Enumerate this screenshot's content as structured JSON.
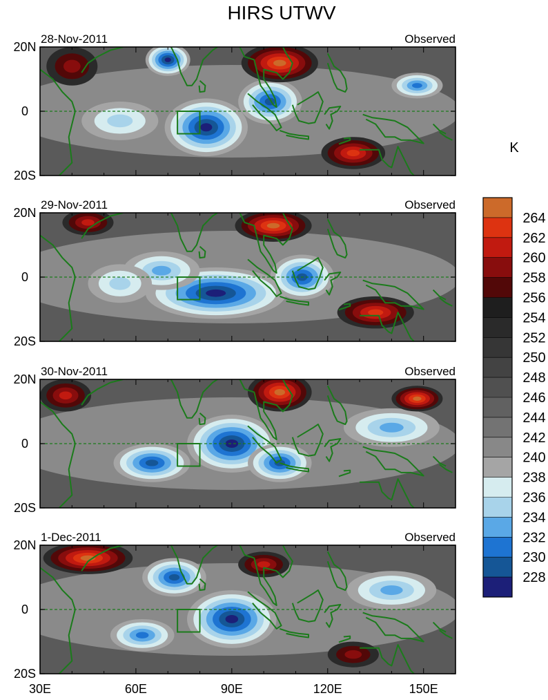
{
  "chart_data": [
    {
      "type": "heatmap",
      "title": "HIRS UTWV",
      "date": "28-Nov-2011",
      "label_right": "Observed",
      "x_ticks": [
        "30E",
        "60E",
        "90E",
        "120E",
        "150E"
      ],
      "x_values": [
        30,
        60,
        90,
        120,
        150
      ],
      "xlim": [
        30,
        160
      ],
      "y_ticks": [
        "20N",
        "0",
        "20S"
      ],
      "y_values": [
        20,
        0,
        -20
      ],
      "ylim": [
        -20,
        20
      ],
      "box": {
        "lon": [
          73,
          80
        ],
        "lat": [
          -7,
          0
        ]
      },
      "equator_line": true,
      "features": [
        {
          "kind": "moist",
          "lon": 70,
          "lat": 16,
          "rx": 7,
          "ry": 5,
          "level": 1.0
        },
        {
          "kind": "moist",
          "lon": 82,
          "lat": -5,
          "rx": 13,
          "ry": 9,
          "level": 1.2
        },
        {
          "kind": "moist",
          "lon": 102,
          "lat": 3,
          "rx": 10,
          "ry": 7,
          "level": 0.9
        },
        {
          "kind": "moist",
          "lon": 148,
          "lat": 8,
          "rx": 8,
          "ry": 4,
          "level": 0.7
        },
        {
          "kind": "moist",
          "lon": 55,
          "lat": -3,
          "rx": 12,
          "ry": 6,
          "level": 0.45
        },
        {
          "kind": "dry",
          "lon": 105,
          "lat": 15,
          "rx": 12,
          "ry": 6,
          "level": 1.2
        },
        {
          "kind": "dry",
          "lon": 128,
          "lat": -13,
          "rx": 10,
          "ry": 5,
          "level": 0.9
        },
        {
          "kind": "dry",
          "lon": 40,
          "lat": 14,
          "rx": 8,
          "ry": 6,
          "level": 0.5
        }
      ]
    },
    {
      "type": "heatmap",
      "date": "29-Nov-2011",
      "label_right": "Observed",
      "x_ticks": [
        "30E",
        "60E",
        "90E",
        "120E",
        "150E"
      ],
      "x_values": [
        30,
        60,
        90,
        120,
        150
      ],
      "xlim": [
        30,
        160
      ],
      "y_ticks": [
        "20N",
        "0",
        "20S"
      ],
      "y_values": [
        20,
        0,
        -20
      ],
      "ylim": [
        -20,
        20
      ],
      "box": {
        "lon": [
          73,
          80
        ],
        "lat": [
          -7,
          0
        ]
      },
      "equator_line": true,
      "features": [
        {
          "kind": "moist",
          "lon": 85,
          "lat": -5,
          "rx": 22,
          "ry": 8,
          "level": 1.1
        },
        {
          "kind": "moist",
          "lon": 68,
          "lat": 2,
          "rx": 12,
          "ry": 6,
          "level": 0.6
        },
        {
          "kind": "moist",
          "lon": 112,
          "lat": 0,
          "rx": 10,
          "ry": 7,
          "level": 0.8
        },
        {
          "kind": "moist",
          "lon": 55,
          "lat": -2,
          "rx": 10,
          "ry": 6,
          "level": 0.4
        },
        {
          "kind": "dry",
          "lon": 103,
          "lat": 16,
          "rx": 12,
          "ry": 5,
          "level": 1.2
        },
        {
          "kind": "dry",
          "lon": 135,
          "lat": -11,
          "rx": 12,
          "ry": 5,
          "level": 0.9
        },
        {
          "kind": "dry",
          "lon": 45,
          "lat": 17,
          "rx": 8,
          "ry": 4,
          "level": 0.6
        }
      ]
    },
    {
      "type": "heatmap",
      "date": "30-Nov-2011",
      "label_right": "Observed",
      "x_ticks": [
        "30E",
        "60E",
        "90E",
        "120E",
        "150E"
      ],
      "x_values": [
        30,
        60,
        90,
        120,
        150
      ],
      "xlim": [
        30,
        160
      ],
      "y_ticks": [
        "20N",
        "0",
        "20S"
      ],
      "y_values": [
        20,
        0,
        -20
      ],
      "ylim": [
        -20,
        20
      ],
      "box": {
        "lon": [
          73,
          80
        ],
        "lat": [
          -7,
          0
        ]
      },
      "equator_line": true,
      "features": [
        {
          "kind": "moist",
          "lon": 90,
          "lat": 0,
          "rx": 14,
          "ry": 9,
          "level": 1.1
        },
        {
          "kind": "moist",
          "lon": 105,
          "lat": -6,
          "rx": 10,
          "ry": 6,
          "level": 0.9
        },
        {
          "kind": "moist",
          "lon": 65,
          "lat": -6,
          "rx": 12,
          "ry": 6,
          "level": 0.8
        },
        {
          "kind": "moist",
          "lon": 140,
          "lat": 5,
          "rx": 15,
          "ry": 6,
          "level": 0.5
        },
        {
          "kind": "dry",
          "lon": 105,
          "lat": 16,
          "rx": 10,
          "ry": 6,
          "level": 1.2
        },
        {
          "kind": "dry",
          "lon": 148,
          "lat": 14,
          "rx": 8,
          "ry": 4,
          "level": 1.1
        },
        {
          "kind": "dry",
          "lon": 38,
          "lat": 15,
          "rx": 8,
          "ry": 5,
          "level": 0.7
        }
      ]
    },
    {
      "type": "heatmap",
      "date": "1-Dec-2011",
      "label_right": "Observed",
      "x_ticks": [
        "30E",
        "60E",
        "90E",
        "120E",
        "150E"
      ],
      "x_values": [
        30,
        60,
        90,
        120,
        150
      ],
      "xlim": [
        30,
        160
      ],
      "y_ticks": [
        "20N",
        "0",
        "20S"
      ],
      "y_values": [
        20,
        0,
        -20
      ],
      "ylim": [
        -20,
        20
      ],
      "box": {
        "lon": [
          73,
          80
        ],
        "lat": [
          -7,
          0
        ]
      },
      "equator_line": true,
      "features": [
        {
          "kind": "moist",
          "lon": 90,
          "lat": -3,
          "rx": 14,
          "ry": 9,
          "level": 1.2
        },
        {
          "kind": "moist",
          "lon": 72,
          "lat": 10,
          "rx": 10,
          "ry": 6,
          "level": 0.8
        },
        {
          "kind": "moist",
          "lon": 62,
          "lat": -8,
          "rx": 10,
          "ry": 5,
          "level": 0.7
        },
        {
          "kind": "moist",
          "lon": 140,
          "lat": 6,
          "rx": 14,
          "ry": 6,
          "level": 0.5
        },
        {
          "kind": "dry",
          "lon": 45,
          "lat": 16,
          "rx": 14,
          "ry": 5,
          "level": 1.0
        },
        {
          "kind": "dry",
          "lon": 100,
          "lat": 14,
          "rx": 8,
          "ry": 4,
          "level": 0.6
        },
        {
          "kind": "dry",
          "lon": 128,
          "lat": -14,
          "rx": 8,
          "ry": 4,
          "level": 0.5
        }
      ]
    }
  ],
  "colorbar": {
    "unit": "K",
    "levels": [
      "264",
      "262",
      "260",
      "258",
      "256",
      "254",
      "252",
      "250",
      "248",
      "246",
      "244",
      "242",
      "240",
      "238",
      "236",
      "234",
      "232",
      "230",
      "228"
    ],
    "colors": [
      "#cc6a2a",
      "#dd3311",
      "#c11a10",
      "#880d0d",
      "#520808",
      "#1e1e1e",
      "#2a2a2a",
      "#363636",
      "#434343",
      "#505050",
      "#616161",
      "#737373",
      "#888888",
      "#a5a5a5",
      "#d6ecef",
      "#a8d3ea",
      "#5aa8e6",
      "#1e74d2",
      "#155696",
      "#1c1f78"
    ]
  },
  "land_color": "#1b7b1b"
}
